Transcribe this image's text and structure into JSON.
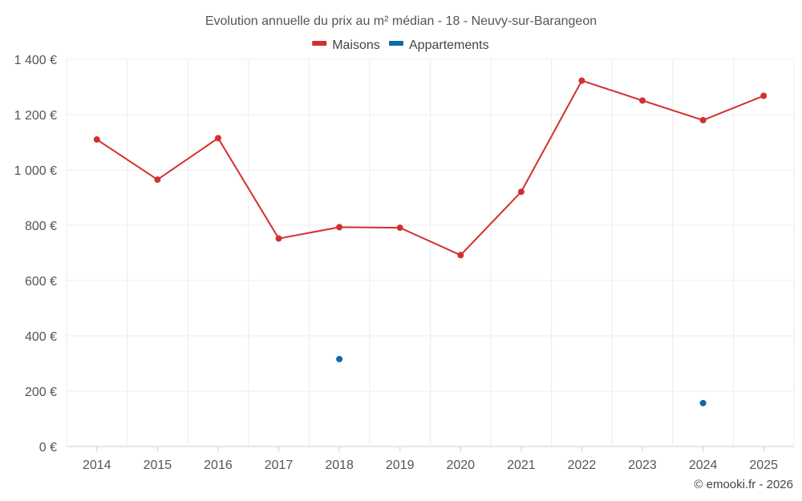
{
  "chart_data": {
    "type": "line",
    "title": "Evolution annuelle du prix au m² médian - 18 - Neuvy-sur-Barangeon",
    "categories": [
      "2014",
      "2015",
      "2016",
      "2017",
      "2018",
      "2019",
      "2020",
      "2021",
      "2022",
      "2023",
      "2024",
      "2025"
    ],
    "series": [
      {
        "name": "Maisons",
        "color": "#d32f2f",
        "values": [
          1110,
          965,
          1115,
          752,
          793,
          791,
          692,
          921,
          1323,
          1251,
          1180,
          1268
        ]
      },
      {
        "name": "Appartements",
        "color": "#0b6aa8",
        "values": [
          null,
          null,
          null,
          null,
          316,
          null,
          null,
          null,
          null,
          null,
          157,
          null
        ]
      }
    ],
    "y_ticks": [
      {
        "value": 0,
        "label": "0 €"
      },
      {
        "value": 200,
        "label": "200 €"
      },
      {
        "value": 400,
        "label": "400 €"
      },
      {
        "value": 600,
        "label": "600 €"
      },
      {
        "value": 800,
        "label": "800 €"
      },
      {
        "value": 1000,
        "label": "1 000 €"
      },
      {
        "value": 1200,
        "label": "1 200 €"
      },
      {
        "value": 1400,
        "label": "1 400 €"
      }
    ],
    "ylim": [
      0,
      1400
    ],
    "xlabel": "",
    "ylabel": "",
    "grid": true,
    "legend_position": "top-center"
  },
  "credit": "© emooki.fr - 2026"
}
